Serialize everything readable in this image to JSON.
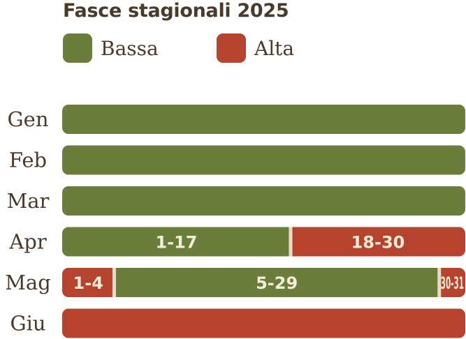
{
  "chart_data": {
    "type": "bar",
    "title": "Fasce stagionali 2025",
    "legend": [
      {
        "key": "bassa",
        "label": "Bassa",
        "color": "#6b7d3a"
      },
      {
        "key": "alta",
        "label": "Alta",
        "color": "#b5432e"
      }
    ],
    "divider_color": "#e8dcc6",
    "label_color": "#4a3a2c",
    "rows": [
      {
        "month": "Gen",
        "days": 31,
        "segments": [
          {
            "season": "bassa",
            "start": 1,
            "end": 31,
            "label": ""
          }
        ]
      },
      {
        "month": "Feb",
        "days": 28,
        "segments": [
          {
            "season": "bassa",
            "start": 1,
            "end": 28,
            "label": ""
          }
        ]
      },
      {
        "month": "Mar",
        "days": 31,
        "segments": [
          {
            "season": "bassa",
            "start": 1,
            "end": 31,
            "label": ""
          }
        ]
      },
      {
        "month": "Apr",
        "days": 30,
        "segments": [
          {
            "season": "bassa",
            "start": 1,
            "end": 17,
            "label": "1-17"
          },
          {
            "season": "alta",
            "start": 18,
            "end": 30,
            "label": "18-30"
          }
        ]
      },
      {
        "month": "Mag",
        "days": 31,
        "segments": [
          {
            "season": "alta",
            "start": 1,
            "end": 4,
            "label": "1-4"
          },
          {
            "season": "bassa",
            "start": 5,
            "end": 29,
            "label": "5-29"
          },
          {
            "season": "alta",
            "start": 30,
            "end": 31,
            "label": "30-31"
          }
        ]
      },
      {
        "month": "Giu",
        "days": 30,
        "segments": [
          {
            "season": "alta",
            "start": 1,
            "end": 30,
            "label": ""
          }
        ]
      }
    ]
  }
}
